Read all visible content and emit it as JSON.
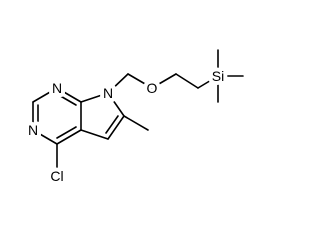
{
  "atoms": {
    "n1": "N",
    "n3": "N",
    "cl": "Cl",
    "n7": "N",
    "o": "O",
    "si": "Si"
  }
}
